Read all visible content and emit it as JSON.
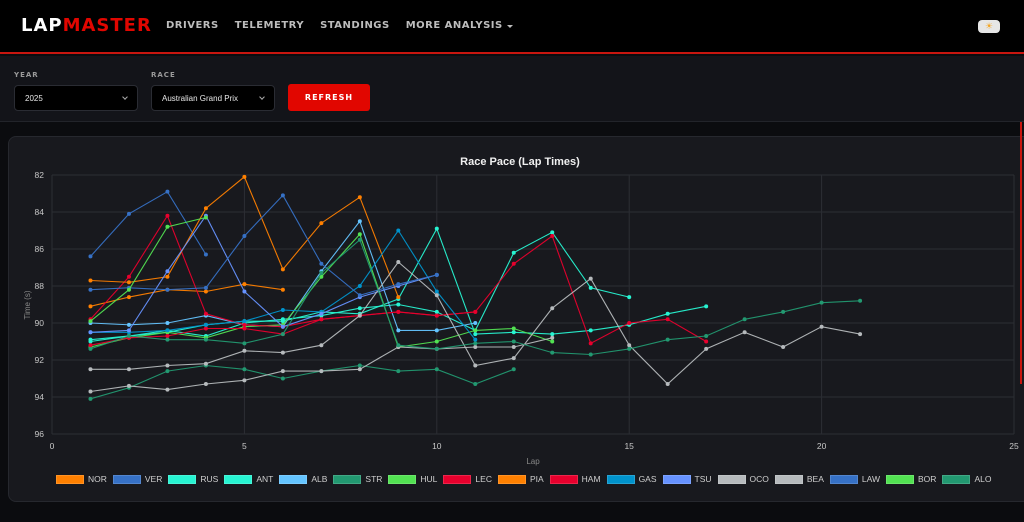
{
  "navbar": {
    "logo_part1": "LAP",
    "logo_part2": "MASTER",
    "items": [
      {
        "label": "DRIVERS"
      },
      {
        "label": "TELEMETRY"
      },
      {
        "label": "STANDINGS"
      },
      {
        "label": "MORE ANALYSIS"
      }
    ],
    "theme_toggle_icon": "sun-icon"
  },
  "filters": {
    "year_label": "YEAR",
    "year_value": "2025",
    "race_label": "RACE",
    "race_value": "Australian Grand Prix",
    "refresh_label": "REFRESH"
  },
  "colors": {
    "brand_red": "#e10600",
    "background": "#0b0c0f",
    "card": "#18191e"
  },
  "chart_data": {
    "type": "line",
    "title": "Race Pace (Lap Times)",
    "xlabel": "Lap",
    "ylabel": "Time (s)",
    "xlim": [
      0,
      25
    ],
    "ylim": [
      82,
      96
    ],
    "y_reversed": true,
    "xticks": [
      0,
      5,
      10,
      15,
      20,
      25
    ],
    "yticks": [
      82,
      84,
      86,
      88,
      90,
      92,
      94,
      96
    ],
    "grid": true,
    "legend_position": "bottom",
    "series": [
      {
        "name": "NOR",
        "color": "#ff8000",
        "x": [
          1,
          2,
          3,
          4,
          5,
          6
        ],
        "values": [
          89.1,
          88.6,
          88.2,
          88.3,
          87.9,
          88.2
        ]
      },
      {
        "name": "VER",
        "color": "#3671c6",
        "x": [
          1,
          2,
          3,
          4
        ],
        "values": [
          86.4,
          84.1,
          82.9,
          86.3
        ]
      },
      {
        "name": "RUS",
        "color": "#27f4d2",
        "x": [
          1,
          2,
          3,
          4,
          5,
          6,
          7,
          8,
          9,
          10,
          11,
          12,
          13,
          14,
          15
        ],
        "values": [
          91.0,
          90.7,
          90.4,
          90.7,
          90.0,
          89.8,
          89.6,
          89.2,
          89.0,
          89.4,
          90.4,
          86.2,
          85.1,
          88.1,
          88.6
        ]
      },
      {
        "name": "ANT",
        "color": "#27f4d2",
        "x": [
          1,
          2,
          3,
          4,
          5,
          6,
          7,
          8,
          9,
          10,
          11,
          12,
          13,
          14,
          15,
          16,
          17
        ],
        "values": [
          90.9,
          90.7,
          90.5,
          90.1,
          89.9,
          89.9,
          89.4,
          89.5,
          88.7,
          84.9,
          90.6,
          90.5,
          90.6,
          90.4,
          90.1,
          89.5,
          89.1
        ]
      },
      {
        "name": "ALB",
        "color": "#64c4ff",
        "x": [
          1,
          2,
          3,
          4,
          5,
          6,
          7,
          8,
          9,
          10,
          11
        ],
        "values": [
          90.0,
          90.1,
          90.0,
          89.6,
          90.1,
          90.2,
          87.2,
          84.5,
          90.4,
          90.4,
          90.0
        ]
      },
      {
        "name": "STR",
        "color": "#229971",
        "x": [
          1,
          2,
          3,
          4,
          5,
          6,
          7,
          8,
          9,
          10,
          11,
          12
        ],
        "values": [
          94.1,
          93.5,
          92.6,
          92.3,
          92.5,
          93.0,
          92.6,
          92.3,
          92.6,
          92.5,
          93.3,
          92.5
        ]
      },
      {
        "name": "HUL",
        "color": "#52e252",
        "x": [
          1,
          2,
          3,
          4,
          5,
          6,
          7,
          8,
          9,
          10,
          11,
          12,
          13
        ],
        "values": [
          91.3,
          90.8,
          90.5,
          90.8,
          90.2,
          90.1,
          87.5,
          85.2,
          91.3,
          91.0,
          90.4,
          90.3,
          91.0
        ]
      },
      {
        "name": "LEC",
        "color": "#e8002d",
        "x": [
          1,
          2,
          3,
          4,
          5,
          6,
          7,
          8,
          9,
          10,
          11
        ],
        "values": [
          89.8,
          87.5,
          84.2,
          89.5,
          90.1,
          90.2,
          89.8,
          89.6,
          89.4,
          89.6,
          89.4
        ]
      },
      {
        "name": "PIA",
        "color": "#ff8000",
        "x": [
          1,
          2,
          3,
          4,
          5,
          6,
          7,
          8,
          9
        ],
        "values": [
          87.7,
          87.8,
          87.5,
          83.8,
          82.1,
          87.1,
          84.6,
          83.2,
          88.6
        ]
      },
      {
        "name": "HAM",
        "color": "#e8002d",
        "x": [
          1,
          2,
          3,
          4,
          5,
          6,
          7,
          8,
          9,
          10,
          11,
          12,
          13,
          14,
          15,
          16,
          17
        ],
        "values": [
          91.2,
          90.8,
          90.7,
          90.3,
          90.3,
          90.6,
          89.8,
          89.6,
          89.4,
          89.6,
          89.4,
          86.8,
          85.3,
          91.1,
          90.0,
          89.8,
          91.0
        ]
      },
      {
        "name": "GAS",
        "color": "#0093cc",
        "x": [
          1,
          2,
          3,
          4,
          5,
          6,
          7,
          8,
          9,
          10,
          11
        ],
        "values": [
          90.5,
          90.5,
          90.4,
          90.1,
          89.9,
          89.3,
          89.4,
          88.0,
          85.0,
          88.3,
          90.9
        ]
      },
      {
        "name": "TSU",
        "color": "#6692ff",
        "x": [
          1,
          2,
          3,
          4,
          5,
          6,
          7,
          8,
          9,
          10
        ],
        "values": [
          90.5,
          90.4,
          87.2,
          84.2,
          88.3,
          90.2,
          89.5,
          88.6,
          88.0,
          87.4
        ]
      },
      {
        "name": "OCO",
        "color": "#b6babd",
        "x": [
          1,
          2,
          3,
          4,
          5,
          6,
          7,
          8,
          9,
          10,
          11,
          12,
          13,
          14,
          15,
          16,
          17,
          18,
          19,
          20,
          21
        ],
        "values": [
          92.5,
          92.5,
          92.3,
          92.2,
          91.5,
          91.6,
          91.2,
          89.6,
          86.7,
          88.5,
          92.3,
          91.9,
          89.2,
          87.6,
          91.2,
          93.3,
          91.4,
          90.5,
          91.3,
          90.2,
          90.6
        ]
      },
      {
        "name": "BEA",
        "color": "#b6babd",
        "x": [
          1,
          2,
          3,
          4,
          5,
          6,
          7,
          8,
          9,
          10,
          11,
          12,
          13
        ],
        "values": [
          93.7,
          93.4,
          93.6,
          93.3,
          93.1,
          92.6,
          92.6,
          92.5,
          91.3,
          91.4,
          91.3,
          91.3,
          90.8
        ]
      },
      {
        "name": "LAW",
        "color": "#3671c6",
        "x": [
          1,
          2,
          3,
          4,
          5,
          6,
          7,
          8,
          9,
          10
        ],
        "values": [
          88.2,
          88.1,
          88.2,
          88.1,
          85.3,
          83.1,
          86.8,
          88.5,
          87.9,
          87.4
        ]
      },
      {
        "name": "BOR",
        "color": "#52e252",
        "x": [
          1,
          2,
          3,
          4
        ],
        "values": [
          89.9,
          88.2,
          84.8,
          84.3
        ]
      },
      {
        "name": "ALO",
        "color": "#229971",
        "x": [
          1,
          2,
          3,
          4,
          5,
          6,
          7,
          8,
          9,
          10,
          11,
          12,
          13,
          14,
          15,
          16,
          17,
          18,
          19,
          20,
          21
        ],
        "values": [
          91.4,
          90.7,
          90.9,
          90.9,
          91.1,
          90.6,
          87.3,
          85.5,
          91.2,
          91.4,
          91.1,
          91.0,
          91.6,
          91.7,
          91.4,
          90.9,
          90.7,
          89.8,
          89.4,
          88.9,
          88.8
        ]
      }
    ]
  }
}
